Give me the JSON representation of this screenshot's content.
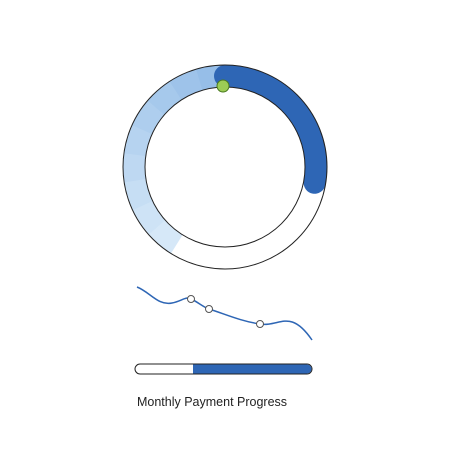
{
  "caption": "Monthly Payment Progress"
}
